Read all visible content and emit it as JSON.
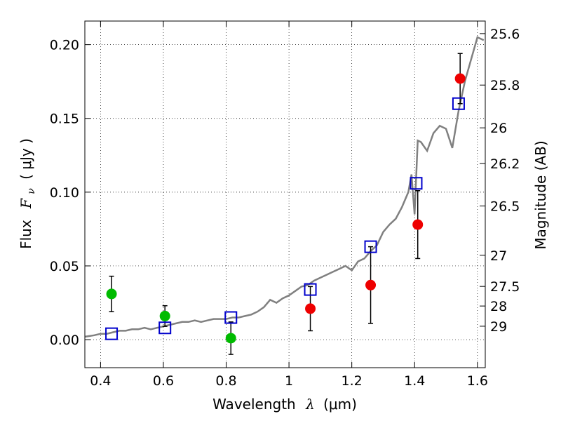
{
  "chart_data": {
    "type": "scatter",
    "title": "",
    "xlabel": "Wavelength",
    "xlabel_math": "λ",
    "xlabel_units": "(μm)",
    "ylabel": "Flux",
    "ylabel_math": "F",
    "ylabel_math_sub": "ν",
    "ylabel_units": "( μJy )",
    "y2label": "Magnitude (AB)",
    "xlim": [
      0.35,
      1.625
    ],
    "ylim": [
      -0.019,
      0.216
    ],
    "grid": true,
    "x_ticks": [
      0.4,
      0.6,
      0.8,
      1.0,
      1.2,
      1.4,
      1.6
    ],
    "x_tick_labels": [
      "0.4",
      "0.6",
      "0.8",
      "1",
      "1.2",
      "1.4",
      "1.6"
    ],
    "y_ticks": [
      0.0,
      0.05,
      0.1,
      0.15,
      0.2
    ],
    "y_tick_labels": [
      "0.00",
      "0.05",
      "0.10",
      "0.15",
      "0.20"
    ],
    "y2_ticks": [
      {
        "label": "25.6",
        "flux": 0.2075
      },
      {
        "label": "25.8",
        "flux": 0.1726
      },
      {
        "label": "26",
        "flux": 0.1436
      },
      {
        "label": "26.2",
        "flux": 0.1194
      },
      {
        "label": "26.5",
        "flux": 0.0906
      },
      {
        "label": "27",
        "flux": 0.0572
      },
      {
        "label": "27.5",
        "flux": 0.0361
      },
      {
        "label": "28",
        "flux": 0.0228
      },
      {
        "label": "29",
        "flux": 0.0091
      }
    ],
    "model_spectrum": {
      "color": "#808080",
      "x": [
        0.35,
        0.38,
        0.4,
        0.42,
        0.44,
        0.46,
        0.48,
        0.5,
        0.52,
        0.54,
        0.56,
        0.58,
        0.6,
        0.62,
        0.64,
        0.66,
        0.68,
        0.7,
        0.72,
        0.74,
        0.76,
        0.78,
        0.8,
        0.82,
        0.84,
        0.86,
        0.88,
        0.9,
        0.92,
        0.94,
        0.96,
        0.98,
        1.0,
        1.02,
        1.04,
        1.06,
        1.08,
        1.1,
        1.12,
        1.14,
        1.16,
        1.18,
        1.2,
        1.22,
        1.24,
        1.26,
        1.28,
        1.3,
        1.32,
        1.34,
        1.36,
        1.38,
        1.39,
        1.4,
        1.41,
        1.42,
        1.44,
        1.46,
        1.48,
        1.5,
        1.52,
        1.54,
        1.56,
        1.58,
        1.6,
        1.62
      ],
      "y": [
        0.002,
        0.003,
        0.004,
        0.004,
        0.005,
        0.006,
        0.006,
        0.007,
        0.007,
        0.008,
        0.007,
        0.008,
        0.009,
        0.01,
        0.011,
        0.012,
        0.012,
        0.013,
        0.012,
        0.013,
        0.014,
        0.014,
        0.014,
        0.015,
        0.015,
        0.016,
        0.017,
        0.019,
        0.022,
        0.027,
        0.025,
        0.028,
        0.03,
        0.033,
        0.036,
        0.037,
        0.04,
        0.042,
        0.044,
        0.046,
        0.048,
        0.05,
        0.047,
        0.053,
        0.055,
        0.06,
        0.064,
        0.073,
        0.078,
        0.082,
        0.09,
        0.1,
        0.112,
        0.085,
        0.135,
        0.134,
        0.128,
        0.14,
        0.145,
        0.143,
        0.13,
        0.155,
        0.175,
        0.19,
        0.205,
        0.203
      ]
    },
    "series": [
      {
        "marker": "circle",
        "color": "#00bb00",
        "points": [
          {
            "x": 0.435,
            "y": 0.031,
            "err": 0.012
          },
          {
            "x": 0.605,
            "y": 0.016,
            "err": 0.007
          },
          {
            "x": 0.815,
            "y": 0.001,
            "err": 0.011
          }
        ]
      },
      {
        "marker": "circle",
        "color": "#ee0000",
        "points": [
          {
            "x": 1.068,
            "y": 0.021,
            "err": 0.015
          },
          {
            "x": 1.26,
            "y": 0.037,
            "err": 0.026
          },
          {
            "x": 1.41,
            "y": 0.078,
            "err": 0.023
          },
          {
            "x": 1.545,
            "y": 0.177,
            "err": 0.017
          }
        ]
      },
      {
        "marker": "square",
        "color": "#0000cc",
        "points": [
          {
            "x": 0.435,
            "y": 0.004
          },
          {
            "x": 0.605,
            "y": 0.008
          },
          {
            "x": 0.815,
            "y": 0.015
          },
          {
            "x": 1.068,
            "y": 0.034
          },
          {
            "x": 1.26,
            "y": 0.063
          },
          {
            "x": 1.405,
            "y": 0.106
          },
          {
            "x": 1.54,
            "y": 0.16
          }
        ]
      }
    ]
  }
}
